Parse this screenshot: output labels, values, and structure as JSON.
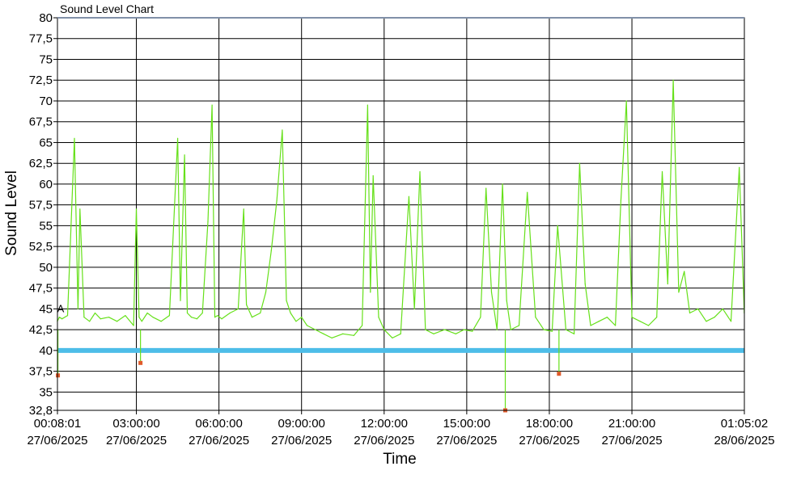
{
  "chart_data": {
    "type": "line",
    "title": "Sound Level Chart",
    "xlabel": "Time",
    "ylabel": "Sound Level",
    "ylim": [
      32.8,
      80
    ],
    "y_ticks": [
      {
        "value": 80,
        "label": "80"
      },
      {
        "value": 77.5,
        "label": "77,5"
      },
      {
        "value": 75,
        "label": "75"
      },
      {
        "value": 72.5,
        "label": "72,5"
      },
      {
        "value": 70,
        "label": "70"
      },
      {
        "value": 67.5,
        "label": "67,5"
      },
      {
        "value": 65,
        "label": "65"
      },
      {
        "value": 62.5,
        "label": "62,5"
      },
      {
        "value": 60,
        "label": "60"
      },
      {
        "value": 57.5,
        "label": "57,5"
      },
      {
        "value": 55,
        "label": "55"
      },
      {
        "value": 52.5,
        "label": "52,5"
      },
      {
        "value": 50,
        "label": "50"
      },
      {
        "value": 47.5,
        "label": "47,5"
      },
      {
        "value": 45,
        "label": "45"
      },
      {
        "value": 42.5,
        "label": "42,5"
      },
      {
        "value": 40,
        "label": "40"
      },
      {
        "value": 37.5,
        "label": "37,5"
      },
      {
        "value": 35,
        "label": "35"
      },
      {
        "value": 32.8,
        "label": "32,8"
      }
    ],
    "xlim_hours": [
      0.1336,
      25.0839
    ],
    "x_ticks": [
      {
        "hours": 0.1336,
        "time": "00:08:01",
        "date": "27/06/2025"
      },
      {
        "hours": 3,
        "time": "03:00:00",
        "date": "27/06/2025"
      },
      {
        "hours": 6,
        "time": "06:00:00",
        "date": "27/06/2025"
      },
      {
        "hours": 9,
        "time": "09:00:00",
        "date": "27/06/2025"
      },
      {
        "hours": 12,
        "time": "12:00:00",
        "date": "27/06/2025"
      },
      {
        "hours": 15,
        "time": "15:00:00",
        "date": "27/06/2025"
      },
      {
        "hours": 18,
        "time": "18:00:00",
        "date": "27/06/2025"
      },
      {
        "hours": 21,
        "time": "21:00:00",
        "date": "27/06/2025"
      },
      {
        "hours": 25.0839,
        "time": "01:05:02",
        "date": "28/06/2025"
      }
    ],
    "grid": true,
    "threshold": {
      "value": 40,
      "color": "#4dbde8"
    },
    "series": [
      {
        "color": "#66e01a",
        "x": [
          0.13,
          0.2,
          0.3,
          0.5,
          0.75,
          0.88,
          0.95,
          1.1,
          1.3,
          1.5,
          1.7,
          2.0,
          2.3,
          2.6,
          2.9,
          3.0,
          3.1,
          3.2,
          3.4,
          3.6,
          3.9,
          4.2,
          4.5,
          4.6,
          4.75,
          4.85,
          5.0,
          5.2,
          5.4,
          5.6,
          5.75,
          5.85,
          5.95,
          6.1,
          6.4,
          6.7,
          6.9,
          7.0,
          7.2,
          7.5,
          7.7,
          7.9,
          8.1,
          8.3,
          8.45,
          8.6,
          8.8,
          9.0,
          9.2,
          9.5,
          9.8,
          10.1,
          10.5,
          10.9,
          11.2,
          11.4,
          11.5,
          11.6,
          11.8,
          12.0,
          12.3,
          12.6,
          12.9,
          13.1,
          13.3,
          13.5,
          13.8,
          14.2,
          14.6,
          14.9,
          15.2,
          15.5,
          15.7,
          15.9,
          16.1,
          16.3,
          16.45,
          16.6,
          16.9,
          17.2,
          17.5,
          17.8,
          18.1,
          18.3,
          18.6,
          18.9,
          19.1,
          19.3,
          19.5,
          19.8,
          20.1,
          20.4,
          20.6,
          20.8,
          21.0,
          21.3,
          21.6,
          21.9,
          22.1,
          22.3,
          22.5,
          22.7,
          22.9,
          23.1,
          23.4,
          23.7,
          24.0,
          24.3,
          24.6,
          24.9,
          25.08
        ],
        "y": [
          43.5,
          44.0,
          43.8,
          44.2,
          65.5,
          45.0,
          57.0,
          44.0,
          43.5,
          44.5,
          43.8,
          44.0,
          43.5,
          44.2,
          43.0,
          57.0,
          44.0,
          43.5,
          44.5,
          44.0,
          43.5,
          44.2,
          65.5,
          46.0,
          63.5,
          44.5,
          44.0,
          43.8,
          44.5,
          55.5,
          69.5,
          44.0,
          44.2,
          43.8,
          44.5,
          45.0,
          57.0,
          45.5,
          44.0,
          44.5,
          47.0,
          52.0,
          58.0,
          66.5,
          46.0,
          44.5,
          43.5,
          44.0,
          43.0,
          42.5,
          42.0,
          41.5,
          42.0,
          41.8,
          43.0,
          69.5,
          47.0,
          61.0,
          44.0,
          42.5,
          41.5,
          42.0,
          58.5,
          45.0,
          61.5,
          42.5,
          42.0,
          42.5,
          42.0,
          42.5,
          42.3,
          44.0,
          59.5,
          47.0,
          42.5,
          60.0,
          46.0,
          42.5,
          43.0,
          59.0,
          44.0,
          42.5,
          42.3,
          55.0,
          42.5,
          42.0,
          62.5,
          48.0,
          43.0,
          43.5,
          44.0,
          43.0,
          58.0,
          70.0,
          44.0,
          43.5,
          43.0,
          44.0,
          61.5,
          48.0,
          72.5,
          47.0,
          49.5,
          44.5,
          45.0,
          43.5,
          44.0,
          45.0,
          43.5,
          62.0,
          44.5
        ]
      }
    ],
    "outliers": [
      {
        "x": 0.15,
        "y": 37.0
      },
      {
        "x": 3.15,
        "y": 38.5
      },
      {
        "x": 16.4,
        "y": 32.8
      },
      {
        "x": 18.35,
        "y": 37.2
      }
    ],
    "outlier_color": "#e05a2a",
    "marker_label": {
      "text": "A",
      "x": 0.25,
      "y": 45.0
    }
  }
}
